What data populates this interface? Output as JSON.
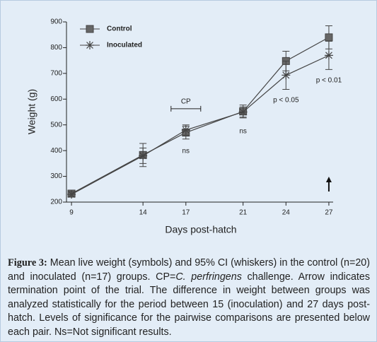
{
  "chart_data": {
    "type": "line",
    "x_label": "Days post-hatch",
    "y_label": "Weight (g)",
    "x": [
      9,
      14,
      17,
      21,
      24,
      27
    ],
    "xlim": [
      8.65,
      27.3
    ],
    "xticks": [
      9,
      14,
      17,
      21,
      24,
      27
    ],
    "ylim": [
      200,
      900
    ],
    "yticks": [
      200,
      300,
      400,
      500,
      600,
      700,
      800,
      900
    ],
    "legend": "top-left",
    "series": [
      {
        "name": "Control",
        "color": "#444444",
        "marker": "square",
        "values": [
          233,
          383,
          470,
          552,
          748,
          840
        ],
        "errors": [
          10,
          45,
          25,
          25,
          38,
          45
        ]
      },
      {
        "name": "Inoculated",
        "color": "#444444",
        "marker": "star",
        "values": [
          230,
          380,
          480,
          550,
          693,
          770
        ],
        "errors": [
          10,
          30,
          20,
          20,
          55,
          55
        ]
      }
    ],
    "annotations": [
      {
        "text": "CP",
        "x": 17,
        "y": 590
      },
      {
        "text": "ns",
        "x": 17,
        "y": 398
      },
      {
        "text": "ns",
        "x": 21,
        "y": 475
      },
      {
        "text": "p < 0.05",
        "x": 24,
        "y": 596
      },
      {
        "text": "p < 0.01",
        "x": 27,
        "y": 672
      }
    ]
  },
  "caption": {
    "label": "Figure 3:",
    "segments": [
      {
        "text": " Mean live weight (symbols) and 95% CI (whiskers) in the control (n=20) and inoculated (n=17) groups.  CP="
      },
      {
        "text": "C. perfringens",
        "italic": true
      },
      {
        "text": " challenge. Arrow indicates termination point of the trial. The difference in weight between groups was analyzed statistically for the period between 15 (inoculation) and 27 days post-hatch. Levels of significance for the pairwise comparisons are presented below each pair. Ns=Not significant results."
      }
    ]
  }
}
